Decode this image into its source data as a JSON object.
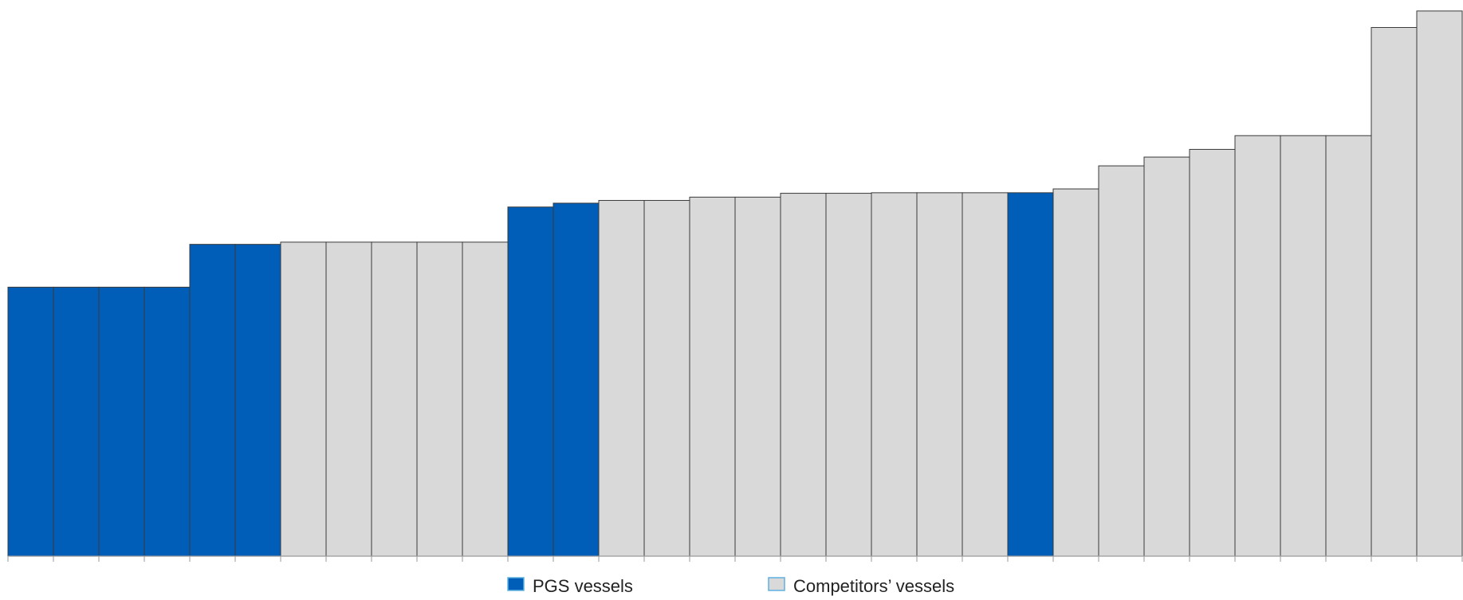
{
  "chart_data": {
    "type": "bar",
    "title": "",
    "xlabel": "",
    "ylabel": "",
    "ylim": [
      0,
      100
    ],
    "grid": false,
    "legend_placement": "bottom-center",
    "values": [
      49,
      49,
      49,
      49,
      56.8,
      56.8,
      57.2,
      57.2,
      57.2,
      57.2,
      57.2,
      63.6,
      64.3,
      64.8,
      64.8,
      65.4,
      65.4,
      66.1,
      66.1,
      66.2,
      66.2,
      66.2,
      66.2,
      66.9,
      71.1,
      72.7,
      74.1,
      76.6,
      76.6,
      76.6,
      96.3,
      99.3
    ],
    "groups": [
      "pgs",
      "pgs",
      "pgs",
      "pgs",
      "pgs",
      "pgs",
      "competitor",
      "competitor",
      "competitor",
      "competitor",
      "competitor",
      "pgs",
      "pgs",
      "competitor",
      "competitor",
      "competitor",
      "competitor",
      "competitor",
      "competitor",
      "competitor",
      "competitor",
      "competitor",
      "pgs",
      "competitor",
      "competitor",
      "competitor",
      "competitor",
      "competitor",
      "competitor",
      "competitor",
      "competitor",
      "competitor"
    ],
    "series": [
      {
        "key": "pgs",
        "name": "PGS vessels",
        "color": "#005EB8"
      },
      {
        "key": "competitor",
        "name": "Competitors’ vessels",
        "color": "#D9D9D9"
      }
    ]
  },
  "legend": {
    "pgs_label": "PGS vessels",
    "competitor_label": "Competitors’ vessels"
  }
}
